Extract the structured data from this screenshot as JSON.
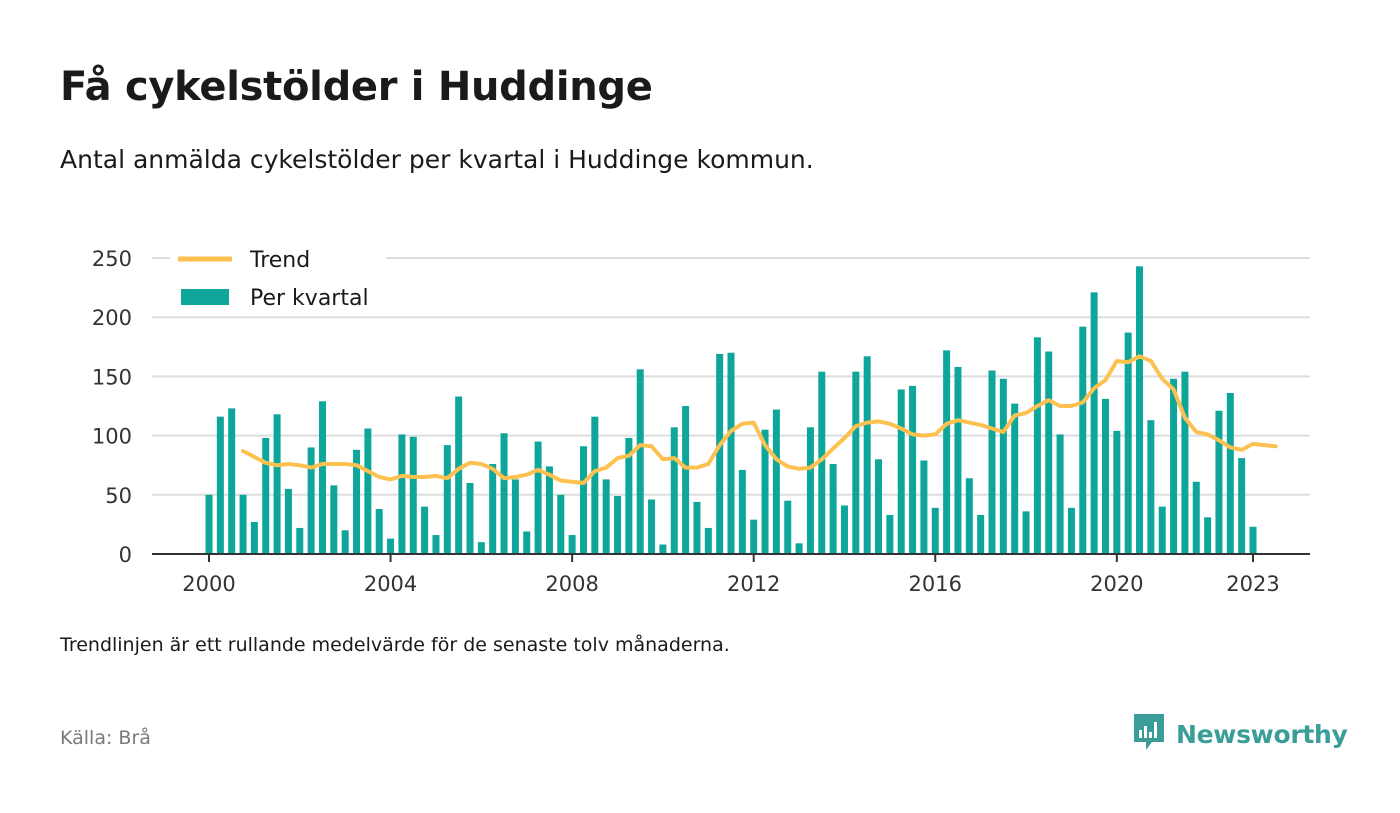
{
  "title": "Få cykelstölder i Huddinge",
  "subtitle": "Antal anmälda cykelstölder per kvartal i Huddinge kommun.",
  "note": "Trendlinjen är ett rullande medelvärde för de senaste tolv månaderna.",
  "source": "Källa: Brå",
  "brand": {
    "name": "Newsworthy",
    "icon": "newsworthy-logo-icon",
    "color": "#3a9d97"
  },
  "colors": {
    "bar": "#0ea69b",
    "trend": "#fdc150",
    "grid": "#dddddd",
    "axis": "#333333"
  },
  "chart_data": {
    "type": "bar",
    "xlabel": "",
    "ylabel": "",
    "ylim": [
      0,
      250
    ],
    "yticks": [
      "0",
      "50",
      "100",
      "150",
      "200",
      "250"
    ],
    "xticks": [
      2000,
      2004,
      2008,
      2012,
      2016,
      2020,
      2023
    ],
    "grid": true,
    "legend_position": "top-left",
    "legend": [
      {
        "label": "Trend",
        "kind": "line"
      },
      {
        "label": "Per kvartal",
        "kind": "bar"
      }
    ],
    "start": {
      "year": 2000,
      "quarter": 1
    },
    "series": [
      {
        "name": "Per kvartal",
        "kind": "bar",
        "values": [
          50,
          116,
          123,
          50,
          27,
          98,
          118,
          55,
          22,
          90,
          129,
          58,
          20,
          88,
          106,
          38,
          13,
          101,
          99,
          40,
          16,
          92,
          133,
          60,
          10,
          76,
          102,
          63,
          19,
          95,
          74,
          50,
          16,
          91,
          116,
          63,
          49,
          98,
          156,
          46,
          8,
          107,
          125,
          44,
          22,
          169,
          170,
          71,
          29,
          105,
          122,
          45,
          9,
          107,
          154,
          76,
          41,
          154,
          167,
          80,
          33,
          139,
          142,
          79,
          39,
          172,
          158,
          64,
          33,
          155,
          148,
          127,
          36,
          183,
          171,
          101,
          39,
          192,
          221,
          131,
          104,
          187,
          243,
          113,
          40,
          148,
          154,
          61,
          31,
          121,
          136,
          81,
          23
        ]
      },
      {
        "name": "Trend",
        "kind": "line",
        "start_index": 3,
        "values": [
          87,
          82,
          77,
          75,
          76,
          75,
          73,
          76,
          76,
          76,
          75,
          70,
          65,
          63,
          66,
          65,
          65,
          66,
          64,
          72,
          77,
          76,
          72,
          64,
          65,
          67,
          71,
          67,
          62,
          61,
          60,
          70,
          73,
          81,
          83,
          92,
          91,
          80,
          81,
          73,
          73,
          76,
          92,
          104,
          110,
          111,
          92,
          80,
          74,
          72,
          73,
          80,
          89,
          98,
          108,
          111,
          112,
          110,
          106,
          101,
          100,
          101,
          110,
          113,
          111,
          109,
          106,
          103,
          117,
          119,
          125,
          130,
          125,
          125,
          128,
          140,
          147,
          163,
          162,
          167,
          163,
          148,
          139,
          115,
          103,
          101,
          96,
          90,
          88,
          93,
          92,
          91
        ]
      }
    ]
  }
}
